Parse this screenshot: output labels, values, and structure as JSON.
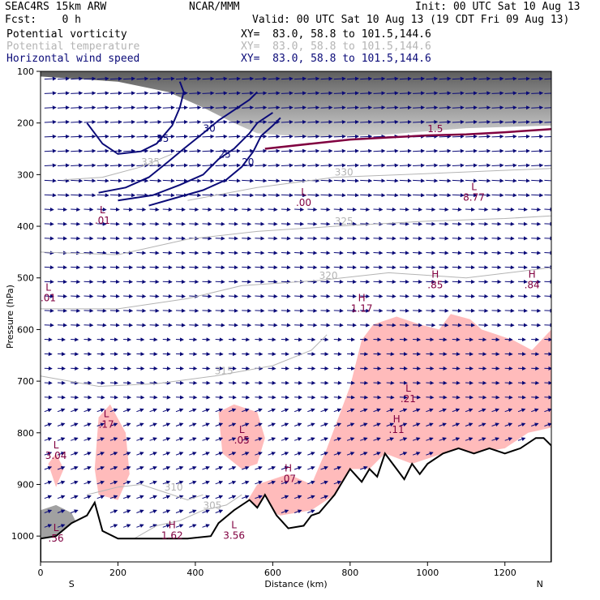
{
  "header": {
    "model": "SEAC4RS 15km ARW",
    "org": "NCAR/MMM",
    "init": "Init: 00 UTC Sat 10 Aug 13",
    "fcst": "Fcst:    0 h",
    "valid": "Valid: 00 UTC Sat 10 Aug 13 (19 CDT Fri 09 Aug 13)"
  },
  "fields": [
    {
      "name": "Potential vorticity",
      "xy": "XY=  83.0, 58.8 to 101.5,144.6",
      "color": "#800040"
    },
    {
      "name": "Potential temperature",
      "xy": "XY=  83.0, 58.8 to 101.5,144.6",
      "color": "#b4b4b4"
    },
    {
      "name": "Horizontal wind speed",
      "xy": "XY=  83.0, 58.8 to 101.5,144.6",
      "color": "#0a0a78"
    }
  ],
  "chart_data": {
    "type": "cross-section",
    "xlabel": "Distance (km)",
    "ylabel": "Pressure (hPa)",
    "xlim": [
      0,
      1320
    ],
    "ylim": [
      1050,
      100
    ],
    "x_ticks": [
      "0",
      "200",
      "400",
      "600",
      "800",
      "1000",
      "1200"
    ],
    "y_ticks": [
      "100",
      "200",
      "300",
      "400",
      "500",
      "600",
      "700",
      "800",
      "900",
      "1000"
    ],
    "endpoints": {
      "left": "S",
      "right": "N"
    },
    "terrain": [
      [
        0,
        1005
      ],
      [
        40,
        1000
      ],
      [
        80,
        975
      ],
      [
        120,
        960
      ],
      [
        140,
        935
      ],
      [
        160,
        990
      ],
      [
        200,
        1005
      ],
      [
        300,
        1005
      ],
      [
        380,
        1005
      ],
      [
        440,
        1000
      ],
      [
        460,
        975
      ],
      [
        500,
        950
      ],
      [
        540,
        930
      ],
      [
        560,
        945
      ],
      [
        580,
        920
      ],
      [
        610,
        960
      ],
      [
        640,
        985
      ],
      [
        680,
        980
      ],
      [
        700,
        960
      ],
      [
        720,
        955
      ],
      [
        760,
        920
      ],
      [
        800,
        870
      ],
      [
        830,
        895
      ],
      [
        850,
        870
      ],
      [
        870,
        885
      ],
      [
        890,
        840
      ],
      [
        920,
        870
      ],
      [
        940,
        890
      ],
      [
        960,
        860
      ],
      [
        980,
        880
      ],
      [
        1000,
        860
      ],
      [
        1040,
        840
      ],
      [
        1080,
        830
      ],
      [
        1120,
        840
      ],
      [
        1160,
        830
      ],
      [
        1200,
        840
      ],
      [
        1240,
        830
      ],
      [
        1280,
        810
      ],
      [
        1300,
        810
      ],
      [
        1320,
        825
      ]
    ],
    "pv_contours": [
      {
        "label": "1.5",
        "points": [
          [
            580,
            250
          ],
          [
            700,
            240
          ],
          [
            800,
            232
          ],
          [
            900,
            228
          ],
          [
            1000,
            224
          ],
          [
            1100,
            222
          ],
          [
            1200,
            218
          ],
          [
            1320,
            212
          ]
        ]
      }
    ],
    "theta_contours": [
      {
        "label": "305",
        "points": [
          [
            230,
            1010
          ],
          [
            300,
            980
          ],
          [
            360,
            970
          ],
          [
            420,
            950
          ],
          [
            480,
            940
          ],
          [
            520,
            920
          ]
        ]
      },
      {
        "label": "310",
        "points": [
          [
            120,
            920
          ],
          [
            200,
            905
          ],
          [
            260,
            900
          ],
          [
            320,
            915
          ],
          [
            380,
            930
          ],
          [
            420,
            920
          ]
        ]
      },
      {
        "label": "315",
        "points": [
          [
            0,
            690
          ],
          [
            150,
            710
          ],
          [
            300,
            705
          ],
          [
            450,
            690
          ],
          [
            600,
            670
          ],
          [
            700,
            640
          ],
          [
            740,
            610
          ]
        ]
      },
      {
        "label": "320",
        "points": [
          [
            0,
            560
          ],
          [
            200,
            560
          ],
          [
            380,
            540
          ],
          [
            520,
            515
          ],
          [
            720,
            505
          ],
          [
            900,
            490
          ],
          [
            1100,
            500
          ],
          [
            1320,
            480
          ]
        ]
      },
      {
        "label": "325",
        "points": [
          [
            0,
            450
          ],
          [
            200,
            455
          ],
          [
            380,
            425
          ],
          [
            560,
            410
          ],
          [
            760,
            400
          ],
          [
            1000,
            390
          ],
          [
            1200,
            385
          ],
          [
            1320,
            380
          ]
        ]
      },
      {
        "label": "330",
        "points": [
          [
            380,
            350
          ],
          [
            560,
            325
          ],
          [
            760,
            305
          ],
          [
            1000,
            298
          ],
          [
            1320,
            288
          ]
        ]
      },
      {
        "label": "335",
        "points": [
          [
            60,
            310
          ],
          [
            160,
            305
          ],
          [
            260,
            285
          ],
          [
            340,
            260
          ]
        ]
      }
    ],
    "wind_contours": [
      {
        "label": "20",
        "points": [
          [
            280,
            360
          ],
          [
            350,
            345
          ],
          [
            420,
            330
          ],
          [
            480,
            310
          ],
          [
            520,
            285
          ],
          [
            550,
            255
          ],
          [
            570,
            225
          ],
          [
            600,
            205
          ],
          [
            620,
            190
          ]
        ]
      },
      {
        "label": "25",
        "points": [
          [
            200,
            350
          ],
          [
            290,
            340
          ],
          [
            360,
            320
          ],
          [
            420,
            300
          ],
          [
            460,
            270
          ],
          [
            500,
            250
          ],
          [
            540,
            220
          ],
          [
            560,
            200
          ],
          [
            600,
            180
          ]
        ]
      },
      {
        "label": "30",
        "points": [
          [
            150,
            335
          ],
          [
            220,
            325
          ],
          [
            280,
            305
          ],
          [
            330,
            275
          ],
          [
            370,
            250
          ],
          [
            420,
            220
          ],
          [
            460,
            195
          ],
          [
            500,
            175
          ],
          [
            540,
            155
          ],
          [
            560,
            140
          ]
        ]
      },
      {
        "label": "35",
        "points": [
          [
            120,
            200
          ],
          [
            160,
            240
          ],
          [
            200,
            260
          ],
          [
            260,
            255
          ],
          [
            300,
            240
          ],
          [
            340,
            205
          ],
          [
            360,
            170
          ],
          [
            370,
            140
          ],
          [
            360,
            120
          ]
        ]
      }
    ],
    "annotations": [
      {
        "type": "L",
        "value": "3.56",
        "x": 500,
        "p": 985
      },
      {
        "type": "H",
        "value": "1.62",
        "x": 340,
        "p": 985
      },
      {
        "type": "L",
        "value": ".56",
        "x": 40,
        "p": 990
      },
      {
        "type": "L",
        "value": "3.04",
        "x": 40,
        "p": 830
      },
      {
        "type": "L",
        "value": ".17",
        "x": 170,
        "p": 770
      },
      {
        "type": "L",
        "value": ".05",
        "x": 520,
        "p": 800
      },
      {
        "type": "H",
        "value": ".07",
        "x": 640,
        "p": 875
      },
      {
        "type": "L",
        "value": ".21",
        "x": 950,
        "p": 720
      },
      {
        "type": "H",
        "value": ".11",
        "x": 920,
        "p": 780
      },
      {
        "type": "L",
        "value": ".01",
        "x": 20,
        "p": 525
      },
      {
        "type": "H",
        "value": "1.17",
        "x": 830,
        "p": 545
      },
      {
        "type": "H",
        "value": ".85",
        "x": 1020,
        "p": 500
      },
      {
        "type": "H",
        "value": ".84",
        "x": 1270,
        "p": 500
      },
      {
        "type": "L",
        "value": "8.77",
        "x": 1120,
        "p": 330
      },
      {
        "type": "L",
        "value": ".00",
        "x": 680,
        "p": 340
      },
      {
        "type": "L",
        "value": ".01",
        "x": 160,
        "p": 375
      }
    ],
    "wind_vectors": "horizontal wind arrows, predominantly eastward, increasing in magnitude aloft"
  },
  "colors": {
    "pv": "#800040",
    "theta": "#b4b4b4",
    "wind": "#0a0a78",
    "moist_shading": "#ffbbbb",
    "upper_shading": "#606060"
  }
}
